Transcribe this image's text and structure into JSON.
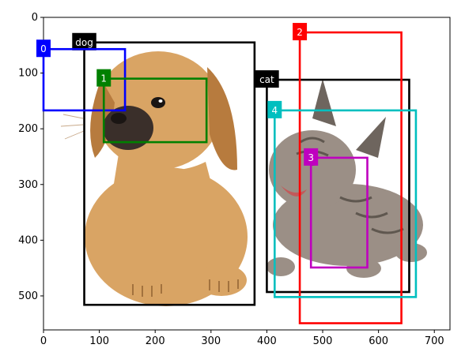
{
  "chart_data": {
    "type": "image_with_bounding_boxes",
    "x_range": [
      0,
      728
    ],
    "y_range": [
      561,
      0
    ],
    "x_ticks": [
      "0",
      "100",
      "200",
      "300",
      "400",
      "500",
      "600",
      "700"
    ],
    "y_ticks": [
      "0",
      "100",
      "200",
      "300",
      "400",
      "500"
    ],
    "boxes": [
      {
        "label": "dog",
        "color": "#000000",
        "text_color": "#ffffff",
        "x1": 73,
        "y1": 45,
        "x2": 378,
        "y2": 516
      },
      {
        "label": "cat",
        "color": "#000000",
        "text_color": "#ffffff",
        "x1": 400,
        "y1": 112,
        "x2": 655,
        "y2": 493
      },
      {
        "label": "0",
        "color": "#0000ff",
        "text_color": "#ffffff",
        "x1": 0,
        "y1": 57,
        "x2": 146,
        "y2": 167
      },
      {
        "label": "1",
        "color": "#008000",
        "text_color": "#ffffff",
        "x1": 108,
        "y1": 110,
        "x2": 292,
        "y2": 224
      },
      {
        "label": "2",
        "color": "#ff0000",
        "text_color": "#ffffff",
        "x1": 459,
        "y1": 27,
        "x2": 641,
        "y2": 549
      },
      {
        "label": "3",
        "color": "#bf00bf",
        "text_color": "#ffffff",
        "x1": 479,
        "y1": 252,
        "x2": 580,
        "y2": 449
      },
      {
        "label": "4",
        "color": "#00bfbf",
        "text_color": "#ffffff",
        "x1": 414,
        "y1": 167,
        "x2": 667,
        "y2": 502
      }
    ]
  },
  "colors": {
    "dog_fur": "#d9a464",
    "dog_fur_dark": "#b77b3e",
    "dog_muzzle": "#3a2f2a",
    "cat_fur": "#9b8f86",
    "cat_fur_dark": "#6e655e",
    "cat_mouth": "#c25a5a"
  }
}
